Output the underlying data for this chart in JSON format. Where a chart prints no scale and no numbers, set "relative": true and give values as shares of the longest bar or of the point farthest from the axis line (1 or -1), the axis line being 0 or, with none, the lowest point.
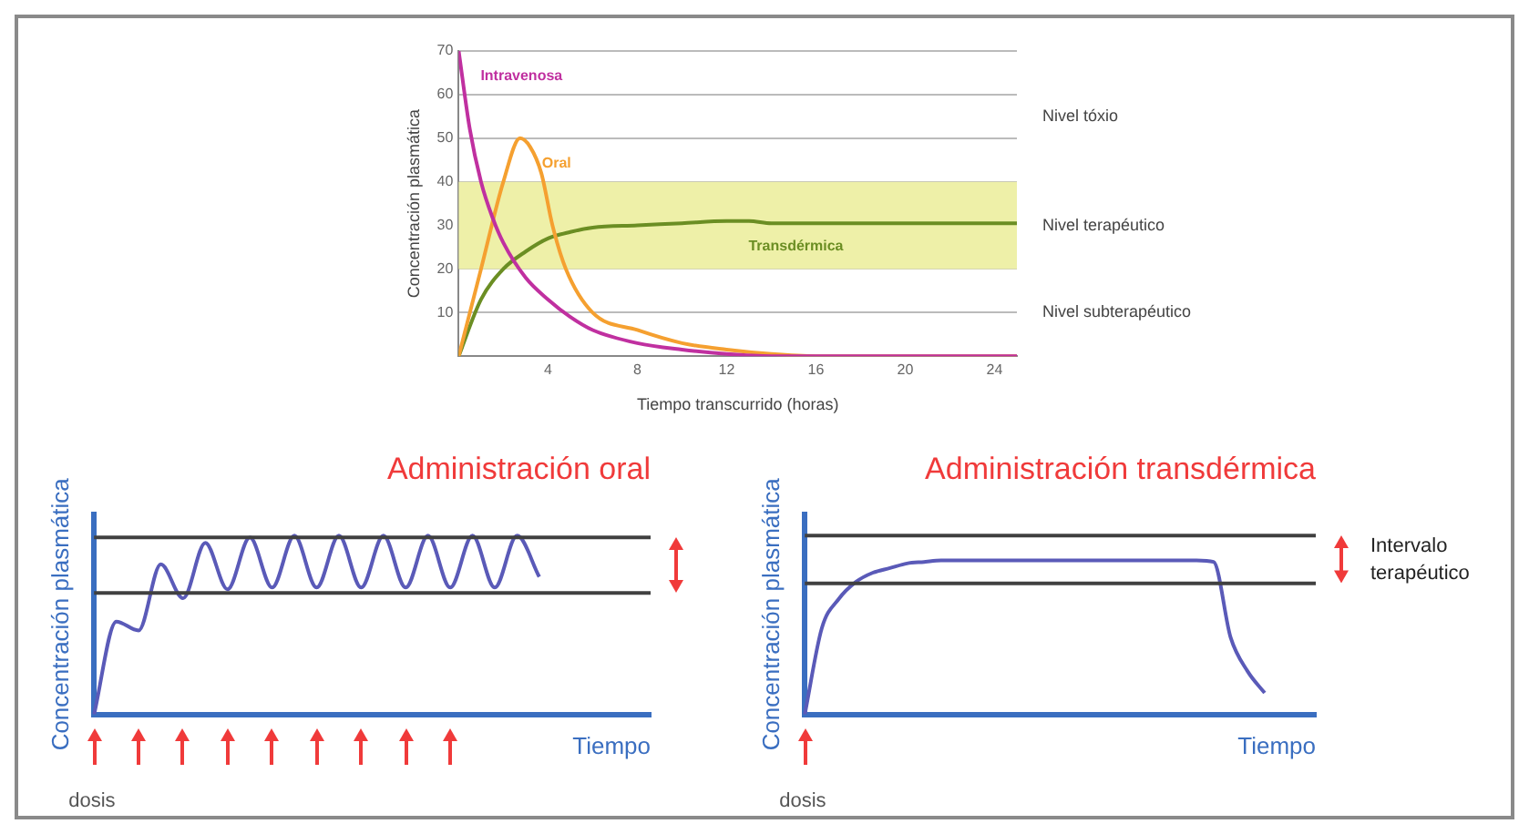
{
  "chart_data": [
    {
      "type": "line",
      "ylabel": "Concentración plasmática",
      "xlabel": "Tiempo transcurrido (horas)",
      "xlim": [
        0,
        25
      ],
      "xticks": [
        4,
        8,
        12,
        16,
        20,
        24
      ],
      "ylim": [
        0,
        70
      ],
      "yticks": [
        10,
        20,
        30,
        40,
        50,
        60,
        70
      ],
      "grid": "y",
      "legend": false,
      "bands": [
        {
          "axis": "y",
          "from": 20,
          "to": 40,
          "label": "Nivel terapéutico",
          "color": "#eef0a8"
        }
      ],
      "annotations": [
        "Nivel tóxio",
        "Nivel subterapéutico"
      ],
      "series": [
        {
          "name": "Intravenosa",
          "color": "#c030a0",
          "x": [
            0,
            0.5,
            1,
            1.5,
            2,
            3,
            4,
            5,
            6,
            8,
            10,
            12,
            14,
            16,
            25
          ],
          "values": [
            70,
            52,
            40,
            32,
            26,
            18,
            13,
            9,
            6,
            3,
            1.5,
            0.5,
            0,
            0,
            0
          ]
        },
        {
          "name": "Oral",
          "color": "#f5a030",
          "x": [
            0,
            1,
            2,
            2.75,
            3.2,
            3.7,
            4.2,
            4.8,
            6,
            8,
            10,
            12,
            14,
            16,
            25
          ],
          "values": [
            0,
            20,
            40,
            50,
            48,
            42,
            30,
            20,
            10,
            6,
            3,
            1.5,
            0.5,
            0,
            0
          ]
        },
        {
          "name": "Transdérmica",
          "color": "#6b8e23",
          "x": [
            0,
            1,
            2,
            3,
            4,
            5,
            6,
            8,
            10,
            12,
            13,
            14,
            25
          ],
          "values": [
            0,
            13,
            20,
            24,
            27,
            28.5,
            29.5,
            30,
            30.5,
            31,
            31,
            30.5,
            30.5
          ]
        }
      ]
    },
    {
      "type": "line",
      "title": "Administración oral",
      "ylabel": "Concentración plasmática",
      "xlabel": "Tiempo",
      "relative": true,
      "legend": false,
      "categories": [
        null,
        null,
        null,
        null,
        null,
        null,
        null,
        null,
        null,
        null,
        null,
        null,
        null,
        null,
        null,
        null,
        null,
        null,
        null,
        null,
        null,
        null,
        null,
        null,
        null,
        null
      ],
      "series": [
        {
          "color": "#5a5ab8",
          "values": [
            0,
            0.52,
            0.47,
            0.84,
            0.65,
            0.96,
            0.7,
            0.99,
            0.71,
            1,
            0.71,
            1,
            0.71,
            1,
            0.71,
            1,
            0.71,
            1,
            0.71,
            1,
            0.77,
            null,
            null,
            null,
            null,
            null
          ]
        }
      ],
      "ref_lines": [
        {
          "axis": "y",
          "value": 0.99,
          "color": "#404040"
        },
        {
          "axis": "y",
          "value": 0.68,
          "color": "#404040"
        }
      ],
      "annotations": [
        "dosis"
      ]
    },
    {
      "type": "line",
      "title": "Administración transdérmica",
      "ylabel": "Concentración plasmática",
      "xlabel": "Tiempo",
      "relative": true,
      "legend": false,
      "categories": [
        null,
        null,
        null,
        null,
        null,
        null,
        null,
        null,
        null,
        null,
        null,
        null,
        null,
        null,
        null,
        null,
        null,
        null,
        null,
        null,
        null,
        null,
        null,
        null,
        null,
        null,
        null,
        null,
        null,
        null,
        null
      ],
      "series": [
        {
          "color": "#5a5ab8",
          "values": [
            0,
            0.56,
            0.75,
            0.86,
            0.92,
            0.95,
            0.98,
            0.99,
            1,
            1,
            1,
            1,
            1,
            1,
            1,
            1,
            1,
            1,
            1,
            1,
            1,
            1,
            1,
            1,
            0.99,
            0.5,
            0.28,
            0.14,
            null,
            null,
            null
          ]
        }
      ],
      "ref_lines": [
        {
          "axis": "y",
          "value": 1.16,
          "color": "#404040"
        },
        {
          "axis": "y",
          "value": 0.85,
          "color": "#404040"
        }
      ],
      "annotations": [
        "dosis",
        "Intervalo terapéutico"
      ]
    }
  ]
}
